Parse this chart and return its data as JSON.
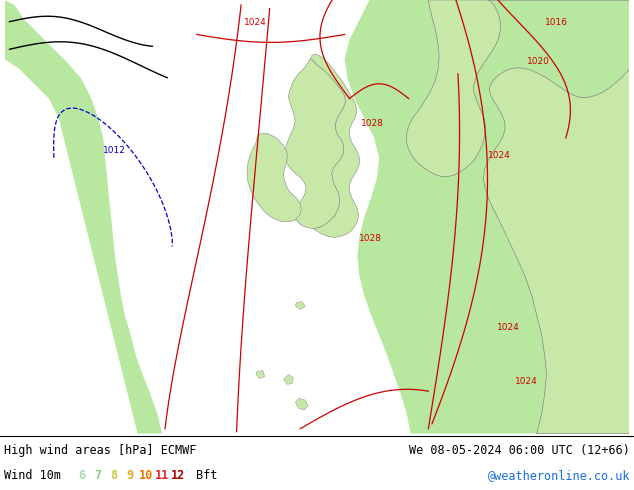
{
  "title_left": "High wind areas [hPa] ECMWF",
  "title_right": "We 08-05-2024 06:00 UTC (12+66)",
  "subtitle_left": "Wind 10m",
  "subtitle_right": "@weatheronline.co.uk",
  "wind_labels": [
    "6",
    "7",
    "8",
    "9",
    "10",
    "11",
    "12"
  ],
  "wind_label_suffix": "Bft",
  "wind_colors": [
    "#aaddaa",
    "#88cc88",
    "#cccc44",
    "#ddaa22",
    "#ee7700",
    "#dd2222",
    "#aa0000"
  ],
  "ocean_color": "#e0e0e8",
  "land_color_light": "#c8e8a8",
  "land_color_dark": "#a8d888",
  "border_color": "#888888",
  "text_color": "#000000",
  "isobar_red": "#cc0000",
  "isobar_blue": "#0000cc",
  "isobar_black": "#000000",
  "title_fontsize": 9,
  "subtitle_fontsize": 9,
  "wind_fontsize": 9,
  "figwidth": 6.34,
  "figheight": 4.9,
  "dpi": 100,
  "map_bg": "#dcdcdc",
  "high_wind_green": "#b8e8a0"
}
